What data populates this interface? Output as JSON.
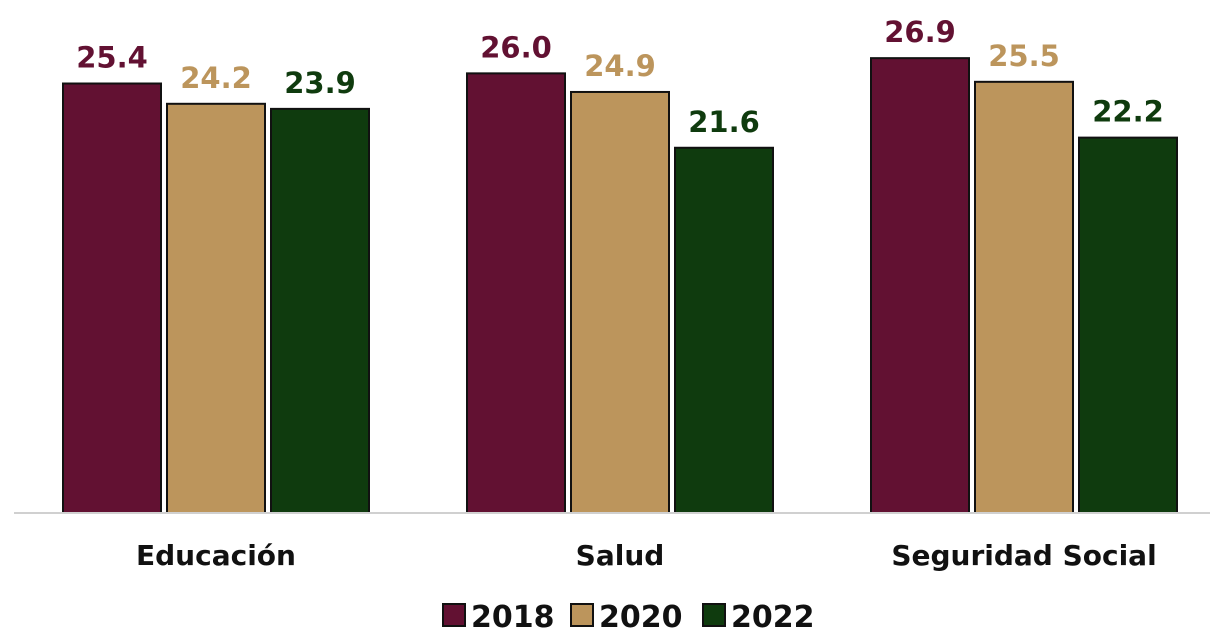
{
  "chart_data": {
    "type": "bar",
    "categories": [
      "Educación",
      "Salud",
      "Seguridad Social"
    ],
    "series": [
      {
        "name": "2018",
        "values": [
          25.4,
          26.0,
          26.9
        ],
        "color": "#621132"
      },
      {
        "name": "2020",
        "values": [
          24.2,
          24.9,
          25.5
        ],
        "color": "#bc955c"
      },
      {
        "name": "2022",
        "values": [
          23.9,
          21.6,
          22.2
        ],
        "color": "#0f3b0e"
      }
    ],
    "value_labels": [
      [
        "25.4",
        "26.0",
        "26.9"
      ],
      [
        "24.2",
        "24.9",
        "25.5"
      ],
      [
        "23.9",
        "21.6",
        "22.2"
      ]
    ],
    "ylim": [
      0,
      27.5
    ],
    "grid": false,
    "legend_position": "bottom-center",
    "axis_color": "#d0d0d0"
  }
}
